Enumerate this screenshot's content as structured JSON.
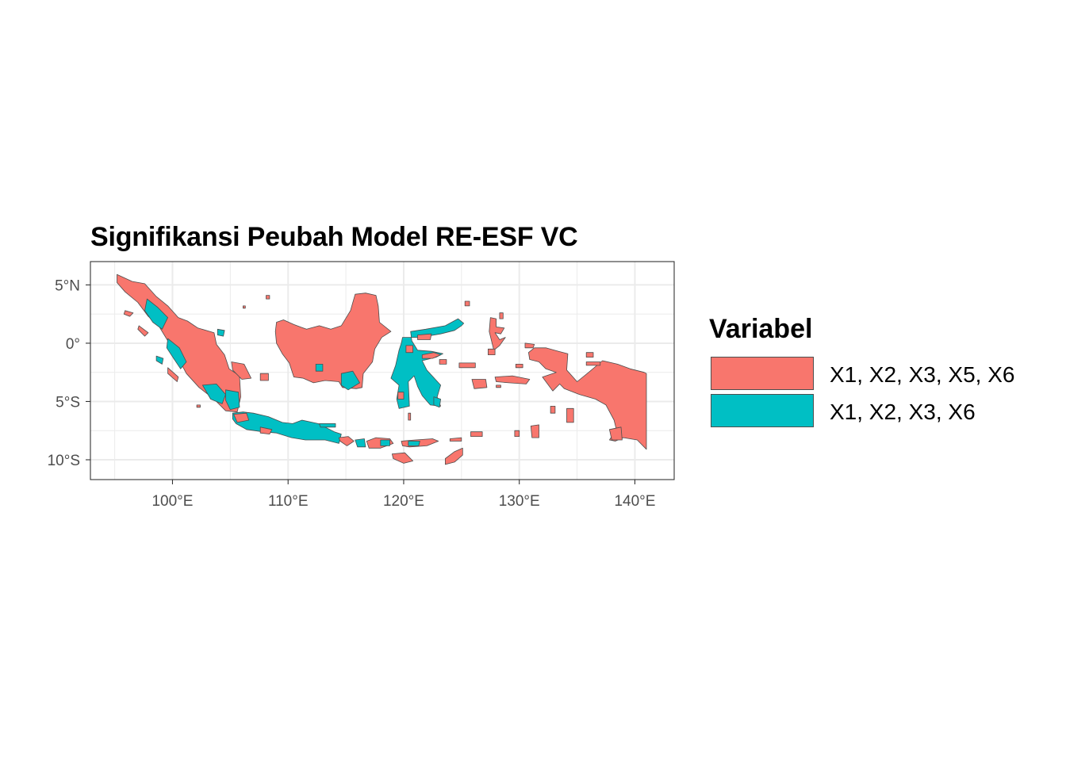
{
  "title": "Signifikansi Peubah Model RE-ESF VC",
  "axes": {
    "x_ticks": [
      {
        "value": 100,
        "label": "100°E"
      },
      {
        "value": 110,
        "label": "110°E"
      },
      {
        "value": 120,
        "label": "120°E"
      },
      {
        "value": 130,
        "label": "130°E"
      },
      {
        "value": 140,
        "label": "140°E"
      }
    ],
    "y_ticks": [
      {
        "value": 5,
        "label": "5°N"
      },
      {
        "value": 0,
        "label": "0°"
      },
      {
        "value": -5,
        "label": "5°S"
      },
      {
        "value": -10,
        "label": "10°S"
      }
    ],
    "xlim": [
      92.9,
      143.4
    ],
    "ylim": [
      -11.7,
      7.0
    ]
  },
  "legend": {
    "title": "Variabel",
    "items": [
      {
        "label": "X1, X2, X3, X5, X6",
        "color": "#F8766D"
      },
      {
        "label": "X1, X2, X3, X6",
        "color": "#00BFC4"
      }
    ]
  },
  "colors": {
    "grid": "#ebebeb",
    "border": "#333333",
    "region_outline": "#4d4d4d"
  }
}
